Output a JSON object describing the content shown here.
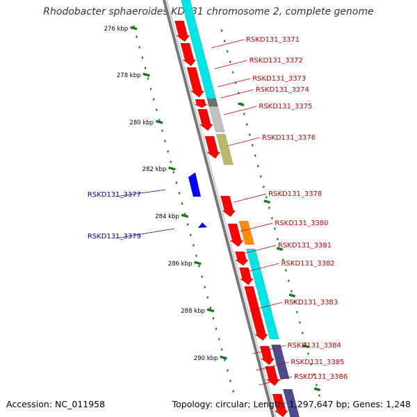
{
  "title": "Rhodobacter sphaeroides KD131 chromosome 2, complete genome",
  "footer": {
    "accession": "Accession: NC_011958",
    "summary": "Topology: circular; Length: 1,297,647 bp; Genes: 1,248"
  },
  "colors": {
    "forward_gene": "#ff0000",
    "reverse_gene": "#0000ff",
    "backbone": "#888888",
    "scale_dots": "#1a7a1a",
    "label_right": "#cc0000",
    "label_left": "#00009a"
  },
  "kbp_ticks": [
    "276 kbp",
    "278 kbp",
    "280 kbp",
    "282 kbp",
    "284 kbp",
    "286 kbp",
    "288 kbp",
    "290 kbp"
  ],
  "genes": [
    {
      "label": "RSKD131_3371",
      "strand": "+",
      "side": "right"
    },
    {
      "label": "RSKD131_3372",
      "strand": "+",
      "side": "right"
    },
    {
      "label": "RSKD131_3373",
      "strand": "+",
      "side": "right"
    },
    {
      "label": "RSKD131_3374",
      "strand": "+",
      "side": "right"
    },
    {
      "label": "RSKD131_3375",
      "strand": "+",
      "side": "right"
    },
    {
      "label": "RSKD131_3376",
      "strand": "+",
      "side": "right"
    },
    {
      "label": "RSKD131_3377",
      "strand": "-",
      "side": "left"
    },
    {
      "label": "RSKD131_3378",
      "strand": "+",
      "side": "right"
    },
    {
      "label": "RSKD131_3379",
      "strand": "-",
      "side": "left"
    },
    {
      "label": "RSKD131_3380",
      "strand": "+",
      "side": "right"
    },
    {
      "label": "RSKD131_3381",
      "strand": "+",
      "side": "right"
    },
    {
      "label": "RSKD131_3382",
      "strand": "+",
      "side": "right"
    },
    {
      "label": "RSKD131_3383",
      "strand": "+",
      "side": "right"
    },
    {
      "label": "RSKD131_3384",
      "strand": "+",
      "side": "right"
    },
    {
      "label": "RSKD131_3385",
      "strand": "+",
      "side": "right"
    },
    {
      "label": "RSKD131_3386",
      "strand": "+",
      "side": "right"
    }
  ],
  "cog_colors": [
    "#00e5e5",
    "#707070",
    "#c0c0c0",
    "#bdb76b",
    "#ff8c00",
    "#00e5e5",
    "#4b4b8f"
  ]
}
